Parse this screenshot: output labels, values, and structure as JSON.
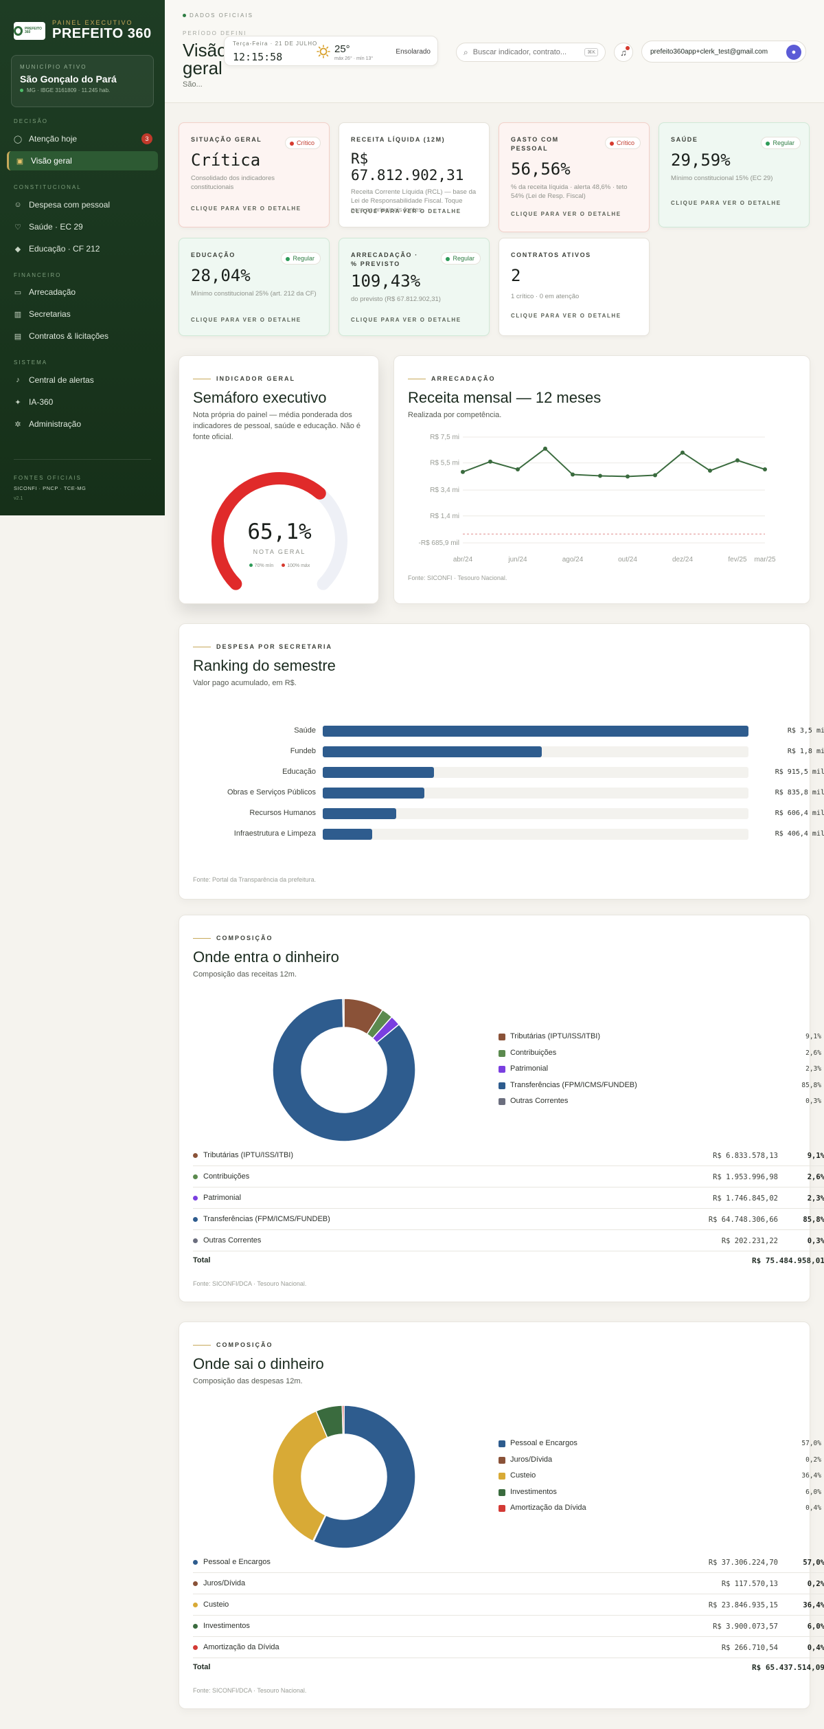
{
  "brand": {
    "eyebrow": "PAINEL EXECUTIVO",
    "title": "PREFEITO 360",
    "logo_text": "PREFEITO 360"
  },
  "municipio": {
    "eyebrow": "MUNICÍPIO ATIVO",
    "name": "São Gonçalo do Pará",
    "meta": "MG · IBGE 3161809 · 11.245 hab."
  },
  "sidebar": {
    "sections": [
      {
        "title": "DECISÃO",
        "items": [
          {
            "label": "Atenção hoje",
            "icon": "alert-circle-icon",
            "badge": "3"
          },
          {
            "label": "Visão geral",
            "icon": "overview-icon",
            "active": true
          }
        ]
      },
      {
        "title": "CONSTITUCIONAL",
        "items": [
          {
            "label": "Despesa com pessoal",
            "icon": "people-icon"
          },
          {
            "label": "Saúde · EC 29",
            "icon": "health-icon"
          },
          {
            "label": "Educação · CF 212",
            "icon": "education-icon"
          }
        ]
      },
      {
        "title": "FINANCEIRO",
        "items": [
          {
            "label": "Arrecadação",
            "icon": "wallet-icon"
          },
          {
            "label": "Secretarias",
            "icon": "building-icon"
          },
          {
            "label": "Contratos & licitações",
            "icon": "document-icon"
          }
        ]
      },
      {
        "title": "SISTEMA",
        "items": [
          {
            "label": "Central de alertas",
            "icon": "bell-icon"
          },
          {
            "label": "IA-360",
            "icon": "sparkle-icon"
          },
          {
            "label": "Administração",
            "icon": "gear-icon"
          }
        ]
      }
    ],
    "fontes_title": "FONTES OFICIAIS",
    "fontes": "SICONFI · PNCP · TCE-MG",
    "version": "v2.1"
  },
  "header": {
    "eyebrow": "DADOS OFICIAIS",
    "periodo": "PERÍODO DEFINI",
    "title": "Visão geral",
    "subtitle": "São...",
    "date": "Terça-Feira · 21 DE JULHO",
    "time": "12:15:58",
    "temp": "25°",
    "temp_minmax": "máx 26° · mín 13°",
    "condition": "Ensolarado",
    "search_placeholder": "Buscar indicador, contrato...",
    "search_kbd": "⌘K",
    "user_email": "prefeito360app+clerk_test@gmail.com"
  },
  "kpis": [
    {
      "label": "SITUAÇÃO GERAL",
      "badge": "Crítico",
      "status": "crit",
      "value": "Crítica",
      "desc": "Consolidado dos indicadores constitucionais",
      "cta": "CLIQUE PARA VER O DETALHE"
    },
    {
      "label": "RECEITA LÍQUIDA (12M)",
      "badge": "",
      "status": "none",
      "value": "R$ 67.812.902,31",
      "desc": "Receita Corrente Líquida (RCL) — base da Lei de Responsabilidade Fiscal. Toque para as principais fontes.",
      "cta": "CLIQUE PARA VER O DETALHE"
    },
    {
      "label": "GASTO COM PESSOAL",
      "badge": "Crítico",
      "status": "crit",
      "value": "56,56%",
      "desc": "% da receita líquida · alerta 48,6% · teto 54% (Lei de Resp. Fiscal)",
      "cta": "CLIQUE PARA VER O DETALHE"
    },
    {
      "label": "SAÚDE",
      "badge": "Regular",
      "status": "reg",
      "value": "29,59%",
      "desc": "Mínimo constitucional 15% (EC 29)",
      "cta": "CLIQUE PARA VER O DETALHE"
    },
    {
      "label": "EDUCAÇÃO",
      "badge": "Regular",
      "status": "reg",
      "value": "28,04%",
      "desc": "Mínimo constitucional 25% (art. 212 da CF)",
      "cta": "CLIQUE PARA VER O DETALHE"
    },
    {
      "label": "ARRECADAÇÃO · % PREVISTO",
      "badge": "Regular",
      "status": "reg",
      "value": "109,43%",
      "desc": "do previsto (R$ 67.812.902,31)",
      "cta": "CLIQUE PARA VER O DETALHE"
    },
    {
      "label": "CONTRATOS ATIVOS",
      "badge": "",
      "status": "none",
      "value": "2",
      "desc": "1 crítico · 0 em atenção",
      "cta": "CLIQUE PARA VER O DETALHE"
    }
  ],
  "semaforo": {
    "eyebrow": "INDICADOR GERAL",
    "title": "Semáforo executivo",
    "subtitle": "Nota própria do painel — média ponderada dos indicadores de pessoal, saúde e educação. Não é fonte oficial.",
    "value": "65,1%",
    "value_fraction": 0.651,
    "caption": "NOTA GERAL",
    "leg1": "70% mín",
    "leg2": "100% máx",
    "gauge_color": "#e02a2a",
    "track_color": "#eef0f6"
  },
  "receita": {
    "eyebrow": "ARRECADAÇÃO",
    "title": "Receita mensal — 12 meses",
    "subtitle": "Realizada por competência.",
    "source": "Fonte: SICONFI · Tesouro Nacional."
  },
  "ranking": {
    "eyebrow": "DESPESA POR SECRETARIA",
    "title": "Ranking do semestre",
    "subtitle": "Valor pago acumulado, em R$.",
    "source": "Fonte: Portal da Transparência da prefeitura."
  },
  "entra": {
    "eyebrow": "COMPOSIÇÃO",
    "title": "Onde entra o dinheiro",
    "subtitle": "Composição das receitas 12m.",
    "source": "Fonte: SICONFI/DCA · Tesouro Nacional.",
    "total_label": "Total",
    "total_value": "R$ 75.484.958,01"
  },
  "sai": {
    "eyebrow": "COMPOSIÇÃO",
    "title": "Onde sai o dinheiro",
    "subtitle": "Composição das despesas 12m.",
    "source": "Fonte: SICONFI/DCA · Tesouro Nacional.",
    "total_label": "Total",
    "total_value": "R$ 65.437.514,09"
  },
  "chart_data": [
    {
      "type": "line",
      "id": "receita_mensal",
      "x": [
        "abr/24",
        "mai/24",
        "jun/24",
        "jul/24",
        "ago/24",
        "set/24",
        "out/24",
        "nov/24",
        "dez/24",
        "jan/25",
        "fev/25",
        "mar/25"
      ],
      "x_ticks": [
        "abr/24",
        "jun/24",
        "ago/24",
        "out/24",
        "dez/24",
        "fev/25",
        "mar/25"
      ],
      "series": [
        {
          "values": [
            4.8,
            5.6,
            5.0,
            6.6,
            4.6,
            4.5,
            4.45,
            4.55,
            6.3,
            4.9,
            5.7,
            5.0
          ]
        }
      ],
      "baseline": 0,
      "yticks": [
        "R$ 7,5 mi",
        "R$ 5,5 mi",
        "R$ 3,4 mi",
        "R$ 1,4 mi",
        "-R$ 685,9 mil"
      ],
      "yticks_values": [
        7.5,
        5.5,
        3.4,
        1.4,
        -0.6859
      ],
      "ylim": [
        -0.6859,
        7.5
      ],
      "color": "#3a6b3e",
      "baseline_color": "#e08a8a"
    },
    {
      "type": "bar",
      "id": "ranking_secretarias",
      "orientation": "horizontal",
      "categories": [
        "Saúde",
        "Fundeb",
        "Educação",
        "Obras e Serviços Públicos",
        "Recursos Humanos",
        "Infraestrutura e Limpeza"
      ],
      "values": [
        3.5,
        1.8,
        0.9155,
        0.8358,
        0.6064,
        0.4064
      ],
      "labels": [
        "R$ 3,5 mi",
        "R$ 1,8 mi",
        "R$ 915,5 mil",
        "R$ 835,8 mil",
        "R$ 606,4 mil",
        "R$ 406,4 mil"
      ],
      "xlim": [
        0,
        3.5
      ],
      "color": "#2e5c8e"
    },
    {
      "type": "pie",
      "id": "receitas",
      "categories": [
        "Tributárias (IPTU/ISS/ITBI)",
        "Contribuições",
        "Patrimonial",
        "Transferências (FPM/ICMS/FUNDEB)",
        "Outras Correntes"
      ],
      "values": [
        9.1,
        2.6,
        2.3,
        85.8,
        0.3
      ],
      "pct_labels": [
        "9,1%",
        "2,6%",
        "2,3%",
        "85,8%",
        "0,3%"
      ],
      "amounts": [
        "R$ 6.833.578,13",
        "R$ 1.953.996,98",
        "R$ 1.746.845,02",
        "R$ 64.748.306,66",
        "R$ 202.231,22"
      ],
      "colors": [
        "#8a5238",
        "#5b8a4e",
        "#7a3fe0",
        "#2e5c8e",
        "#6b6e7e"
      ]
    },
    {
      "type": "pie",
      "id": "despesas",
      "categories": [
        "Pessoal e Encargos",
        "Juros/Dívida",
        "Custeio",
        "Investimentos",
        "Amortização da Dívida"
      ],
      "values": [
        57.0,
        0.2,
        36.4,
        6.0,
        0.4
      ],
      "pct_labels": [
        "57,0%",
        "0,2%",
        "36,4%",
        "6,0%",
        "0,4%"
      ],
      "amounts": [
        "R$ 37.306.224,70",
        "R$ 117.570,13",
        "R$ 23.846.935,15",
        "R$ 3.900.073,57",
        "R$ 266.710,54"
      ],
      "colors": [
        "#2e5c8e",
        "#8a5238",
        "#d8aa36",
        "#3a6b3e",
        "#d33a35"
      ]
    }
  ]
}
